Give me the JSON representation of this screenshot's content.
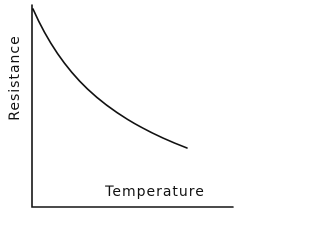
{
  "chart_data": {
    "type": "line",
    "x_label": "Temperature",
    "y_label": "Resistance"
  }
}
